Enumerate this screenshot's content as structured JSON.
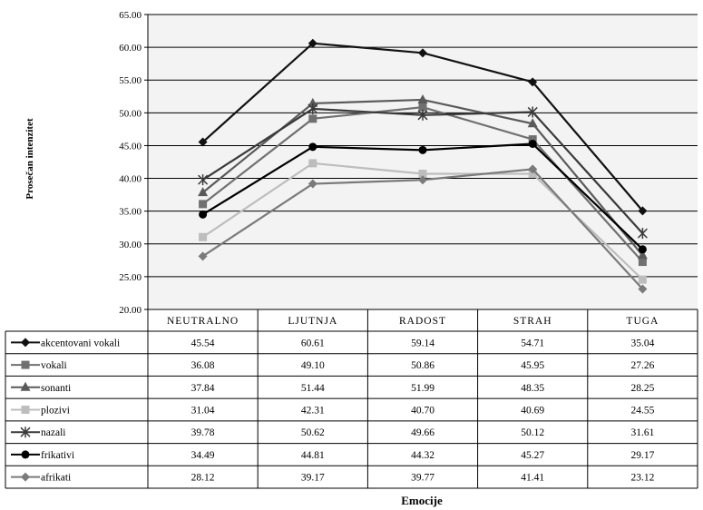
{
  "chart_data": {
    "type": "line",
    "title": "",
    "xlabel": "Emocije",
    "ylabel": "Prosečan intenzitet",
    "ylim": [
      20,
      65
    ],
    "ytick_step": 5,
    "y_ticks": [
      "65.00",
      "60.00",
      "55.00",
      "50.00",
      "45.00",
      "40.00",
      "35.00",
      "30.00",
      "25.00",
      "20.00"
    ],
    "grid": true,
    "legend": "data-table",
    "categories": [
      "NEUTRALNO",
      "LJUTNJA",
      "RADOST",
      "STRAH",
      "TUGA"
    ],
    "series": [
      {
        "name": "akcentovani vokali",
        "marker": "diamond",
        "color": "#111111",
        "values": [
          45.54,
          60.61,
          59.14,
          54.71,
          35.04
        ],
        "labels": [
          "45.54",
          "60.61",
          "59.14",
          "54.71",
          "35.04"
        ]
      },
      {
        "name": "vokali",
        "marker": "square",
        "color": "#707070",
        "values": [
          36.08,
          49.1,
          50.86,
          45.95,
          27.26
        ],
        "labels": [
          "36.08",
          "49.10",
          "50.86",
          "45.95",
          "27.26"
        ]
      },
      {
        "name": "sonanti",
        "marker": "triangle",
        "color": "#5a5a5a",
        "values": [
          37.84,
          51.44,
          51.99,
          48.35,
          28.25
        ],
        "labels": [
          "37.84",
          "51.44",
          "51.99",
          "48.35",
          "28.25"
        ]
      },
      {
        "name": "plozivi",
        "marker": "square",
        "color": "#bdbdbd",
        "values": [
          31.04,
          42.31,
          40.7,
          40.69,
          24.55
        ],
        "labels": [
          "31.04",
          "42.31",
          "40.70",
          "40.69",
          "24.55"
        ]
      },
      {
        "name": "nazali",
        "marker": "star",
        "color": "#3a3a3a",
        "values": [
          39.78,
          50.62,
          49.66,
          50.12,
          31.61
        ],
        "labels": [
          "39.78",
          "50.62",
          "49.66",
          "50.12",
          "31.61"
        ]
      },
      {
        "name": "frikativi",
        "marker": "circle",
        "color": "#000000",
        "values": [
          34.49,
          44.81,
          44.32,
          45.27,
          29.17
        ],
        "labels": [
          "34.49",
          "44.81",
          "44.32",
          "45.27",
          "29.17"
        ]
      },
      {
        "name": "afrikati",
        "marker": "diamond",
        "color": "#7a7a7a",
        "values": [
          28.12,
          39.17,
          39.77,
          41.41,
          23.12
        ],
        "labels": [
          "28.12",
          "39.17",
          "39.77",
          "41.41",
          "23.12"
        ]
      }
    ]
  }
}
